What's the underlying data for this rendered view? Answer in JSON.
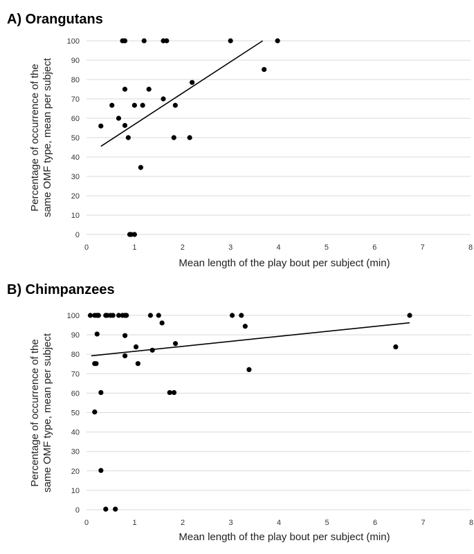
{
  "chart_data": [
    {
      "type": "scatter",
      "title": "A) Orangutans",
      "xlabel": "Mean length of the play bout per subject (min)",
      "ylabel_line1": "Percentage of occurrence of the",
      "ylabel_line2": "same OMF type, mean per subject",
      "xlim": [
        0,
        8
      ],
      "ylim": [
        0,
        100
      ],
      "xticks": [
        0,
        1,
        2,
        3,
        4,
        5,
        6,
        7,
        8
      ],
      "yticks": [
        0,
        10,
        20,
        30,
        40,
        50,
        60,
        70,
        80,
        90,
        100
      ],
      "grid": true,
      "points": [
        [
          0.3,
          56
        ],
        [
          0.53,
          66.7
        ],
        [
          0.67,
          60
        ],
        [
          0.75,
          100
        ],
        [
          0.8,
          100
        ],
        [
          0.8,
          75
        ],
        [
          0.8,
          56.3
        ],
        [
          0.87,
          50
        ],
        [
          0.9,
          0
        ],
        [
          0.93,
          0
        ],
        [
          1.0,
          66.7
        ],
        [
          1.0,
          0
        ],
        [
          1.13,
          34.6
        ],
        [
          1.17,
          66.7
        ],
        [
          1.2,
          100
        ],
        [
          1.3,
          75
        ],
        [
          1.6,
          100
        ],
        [
          1.6,
          70
        ],
        [
          1.67,
          100
        ],
        [
          1.82,
          50
        ],
        [
          1.85,
          66.7
        ],
        [
          2.15,
          50
        ],
        [
          2.2,
          78.5
        ],
        [
          3.0,
          100
        ],
        [
          3.7,
          85.2
        ],
        [
          3.98,
          100
        ]
      ],
      "trendline": {
        "x": [
          0.3,
          3.67
        ],
        "y": [
          45.5,
          100
        ]
      }
    },
    {
      "type": "scatter",
      "title": "B) Chimpanzees",
      "xlabel": "Mean length of the play bout per subject (min)",
      "ylabel_line1": "Percentage of occurrence of the",
      "ylabel_line2": "same OMF type, mean per subject",
      "xlim": [
        0,
        8
      ],
      "ylim": [
        0,
        100
      ],
      "xticks": [
        0,
        1,
        2,
        3,
        4,
        5,
        6,
        7,
        8
      ],
      "yticks": [
        0,
        10,
        20,
        30,
        40,
        50,
        60,
        70,
        80,
        90,
        100
      ],
      "grid": true,
      "points": [
        [
          0.08,
          100
        ],
        [
          0.17,
          100
        ],
        [
          0.22,
          100
        ],
        [
          0.25,
          100
        ],
        [
          0.4,
          100
        ],
        [
          0.43,
          100
        ],
        [
          0.5,
          100
        ],
        [
          0.55,
          100
        ],
        [
          0.67,
          100
        ],
        [
          0.75,
          100
        ],
        [
          0.8,
          100
        ],
        [
          0.83,
          100
        ],
        [
          1.33,
          100
        ],
        [
          1.5,
          100
        ],
        [
          3.03,
          100
        ],
        [
          3.22,
          100
        ],
        [
          6.72,
          100
        ],
        [
          1.57,
          96.1
        ],
        [
          3.3,
          94.4
        ],
        [
          0.22,
          90.4
        ],
        [
          0.8,
          89.6
        ],
        [
          1.85,
          85.5
        ],
        [
          1.03,
          83.8
        ],
        [
          6.43,
          83.8
        ],
        [
          1.37,
          82.1
        ],
        [
          0.8,
          79.2
        ],
        [
          0.17,
          75.2
        ],
        [
          0.2,
          75.2
        ],
        [
          1.07,
          75.2
        ],
        [
          3.38,
          72.1
        ],
        [
          0.3,
          60.3
        ],
        [
          1.73,
          60.3
        ],
        [
          1.82,
          60.3
        ],
        [
          0.17,
          50.3
        ],
        [
          0.3,
          20.2
        ],
        [
          0.4,
          0.3
        ],
        [
          0.6,
          0.3
        ]
      ],
      "trendline": {
        "x": [
          0.1,
          6.72
        ],
        "y": [
          79.2,
          96.2
        ]
      }
    }
  ]
}
